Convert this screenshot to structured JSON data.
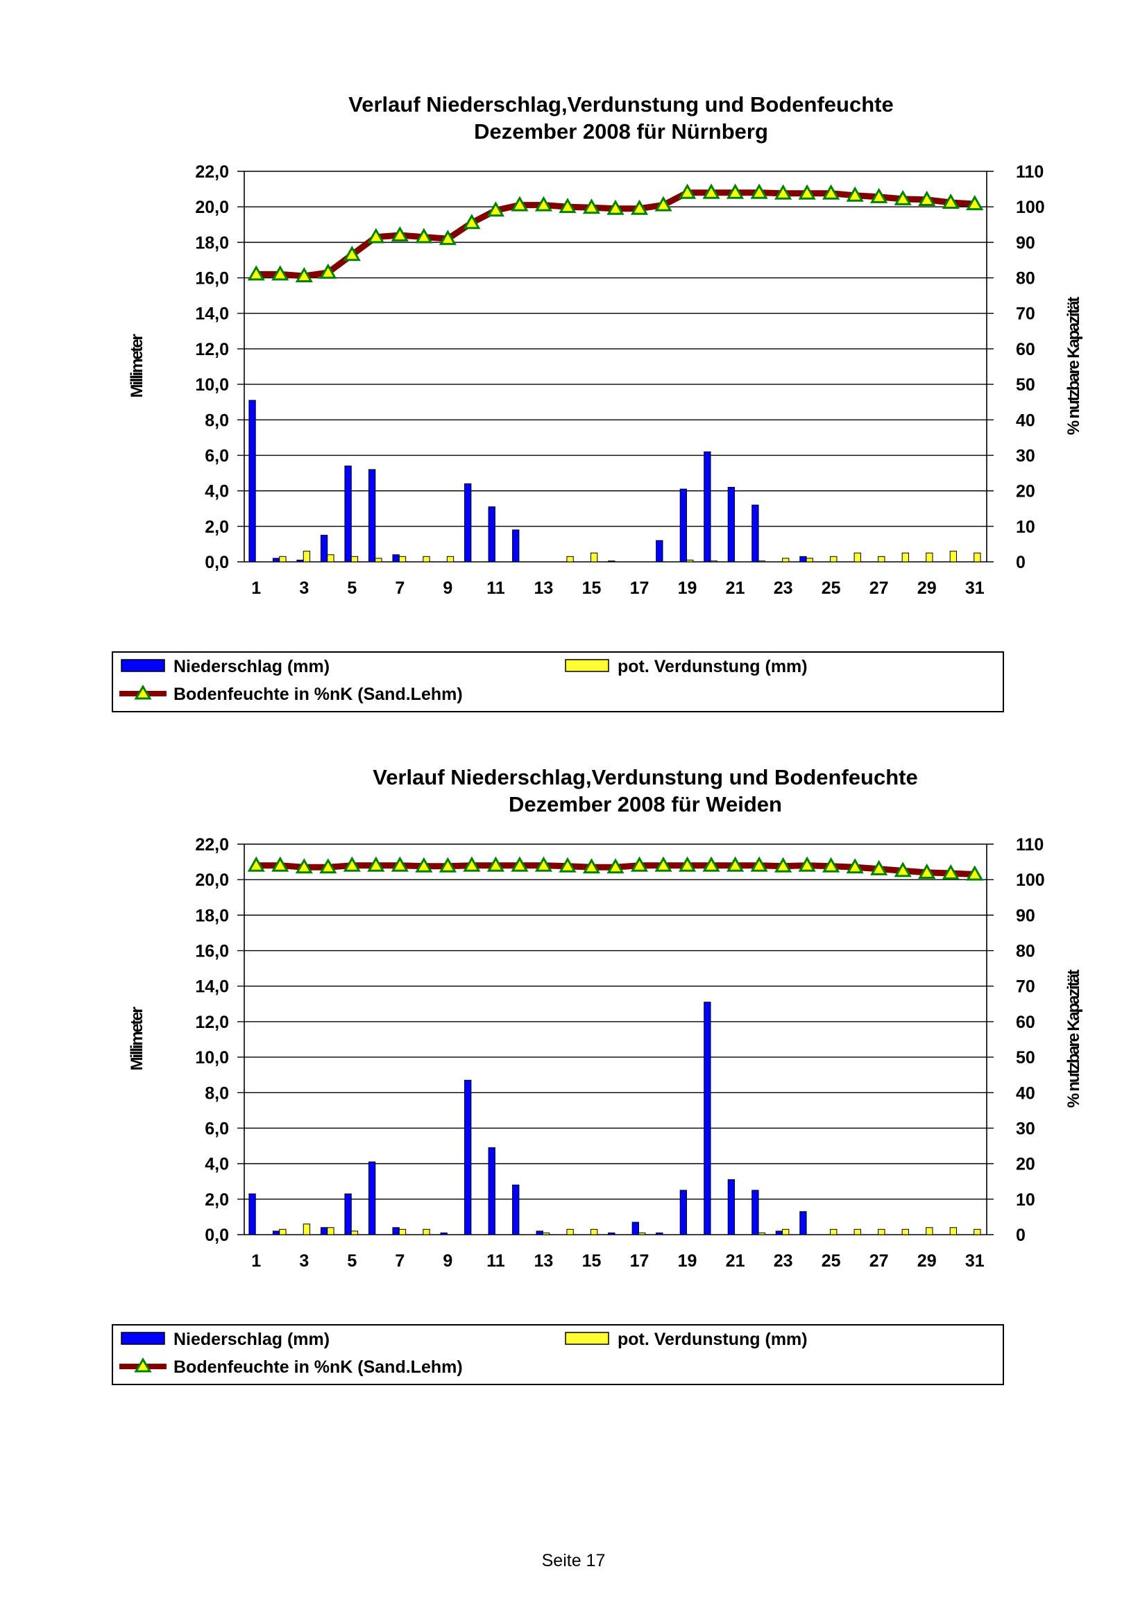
{
  "colors": {
    "precip": "#0000ff",
    "evap": "#ffff33",
    "soil_line": "#800000",
    "marker": "#ffff00",
    "marker_edge": "#008000"
  },
  "chart_data": [
    {
      "type": "bar",
      "title": "Verlauf Niederschlag,Verdunstung und Bodenfeuchte",
      "subtitle": "Dezember 2008 für Nürnberg",
      "ylabel": "Millimeter",
      "y2label": "% nutzbare Kapazität",
      "ylim": [
        0,
        22
      ],
      "y2lim": [
        0,
        110
      ],
      "yticks": [
        "0,0",
        "2,0",
        "4,0",
        "6,0",
        "8,0",
        "10,0",
        "12,0",
        "14,0",
        "16,0",
        "18,0",
        "20,0",
        "22,0"
      ],
      "y2ticks": [
        "0",
        "10",
        "20",
        "30",
        "40",
        "50",
        "60",
        "70",
        "80",
        "90",
        "100",
        "110"
      ],
      "xticks": [
        "1",
        "3",
        "5",
        "7",
        "9",
        "11",
        "13",
        "15",
        "17",
        "19",
        "21",
        "23",
        "25",
        "27",
        "29",
        "31"
      ],
      "categories": [
        1,
        2,
        3,
        4,
        5,
        6,
        7,
        8,
        9,
        10,
        11,
        12,
        13,
        14,
        15,
        16,
        17,
        18,
        19,
        20,
        21,
        22,
        23,
        24,
        25,
        26,
        27,
        28,
        29,
        30,
        31
      ],
      "series": [
        {
          "name": "Niederschlag (mm)",
          "kind": "bar",
          "values": [
            9.1,
            0.2,
            0.1,
            1.5,
            5.4,
            5.2,
            0.4,
            0,
            0,
            4.4,
            3.1,
            1.8,
            0,
            0,
            0,
            0.05,
            0,
            1.2,
            4.1,
            6.2,
            4.2,
            3.2,
            0,
            0.3,
            0,
            0,
            0,
            0,
            0,
            0,
            0
          ]
        },
        {
          "name": "pot. Verdunstung (mm)",
          "kind": "bar",
          "values": [
            0,
            0.3,
            0.6,
            0.4,
            0.3,
            0.2,
            0.3,
            0.3,
            0.3,
            0,
            0,
            0,
            0,
            0.3,
            0.5,
            0,
            0,
            0,
            0.1,
            0.05,
            0,
            0.05,
            0.2,
            0.2,
            0.3,
            0.5,
            0.3,
            0.5,
            0.5,
            0.6,
            0.5
          ]
        },
        {
          "name": "Bodenfeuchte in %nK (Sand.Lehm)",
          "kind": "line",
          "axis": "right",
          "values": [
            81,
            81,
            80.5,
            81.5,
            86.5,
            91.5,
            92,
            91.5,
            91,
            95.5,
            99,
            100.5,
            100.5,
            100,
            99.8,
            99.5,
            99.5,
            100.5,
            104,
            104,
            104,
            104,
            103.8,
            103.8,
            103.8,
            103.2,
            102.8,
            102.2,
            102,
            101.2,
            100.8
          ]
        }
      ],
      "legend": {
        "precip_label": "Niederschlag (mm)",
        "evap_label": "pot. Verdunstung (mm)",
        "soil_label": "Bodenfeuchte in %nK (Sand.Lehm)",
        "position": "bottom"
      }
    },
    {
      "type": "bar",
      "title": "Verlauf Niederschlag,Verdunstung und Bodenfeuchte",
      "subtitle": "Dezember 2008 für Weiden",
      "ylabel": "Millimeter",
      "y2label": "% nutzbare Kapazität",
      "ylim": [
        0,
        22
      ],
      "y2lim": [
        0,
        110
      ],
      "yticks": [
        "0,0",
        "2,0",
        "4,0",
        "6,0",
        "8,0",
        "10,0",
        "12,0",
        "14,0",
        "16,0",
        "18,0",
        "20,0",
        "22,0"
      ],
      "y2ticks": [
        "0",
        "10",
        "20",
        "30",
        "40",
        "50",
        "60",
        "70",
        "80",
        "90",
        "100",
        "110"
      ],
      "xticks": [
        "1",
        "3",
        "5",
        "7",
        "9",
        "11",
        "13",
        "15",
        "17",
        "19",
        "21",
        "23",
        "25",
        "27",
        "29",
        "31"
      ],
      "categories": [
        1,
        2,
        3,
        4,
        5,
        6,
        7,
        8,
        9,
        10,
        11,
        12,
        13,
        14,
        15,
        16,
        17,
        18,
        19,
        20,
        21,
        22,
        23,
        24,
        25,
        26,
        27,
        28,
        29,
        30,
        31
      ],
      "series": [
        {
          "name": "Niederschlag (mm)",
          "kind": "bar",
          "values": [
            2.3,
            0.2,
            0,
            0.4,
            2.3,
            4.1,
            0.4,
            0,
            0.1,
            8.7,
            4.9,
            2.8,
            0.2,
            0,
            0,
            0.1,
            0.7,
            0.1,
            2.5,
            13.1,
            3.1,
            2.5,
            0.2,
            1.3,
            0,
            0,
            0,
            0,
            0,
            0,
            0
          ]
        },
        {
          "name": "pot. Verdunstung (mm)",
          "kind": "bar",
          "values": [
            0,
            0.3,
            0.6,
            0.4,
            0.2,
            0,
            0.3,
            0.3,
            0,
            0,
            0,
            0,
            0.1,
            0.3,
            0.3,
            0,
            0.1,
            0,
            0,
            0,
            0,
            0.1,
            0.3,
            0,
            0.3,
            0.3,
            0.3,
            0.3,
            0.4,
            0.4,
            0.3
          ]
        },
        {
          "name": "Bodenfeuchte in %nK (Sand.Lehm)",
          "kind": "line",
          "axis": "right",
          "values": [
            104,
            104,
            103.5,
            103.5,
            104,
            104,
            104,
            103.8,
            103.8,
            104,
            104,
            104,
            104,
            103.8,
            103.5,
            103.5,
            104,
            104,
            104,
            104,
            104,
            104,
            103.8,
            104,
            103.8,
            103.5,
            103,
            102.5,
            102,
            101.8,
            101.5
          ]
        }
      ],
      "legend": {
        "precip_label": "Niederschlag (mm)",
        "evap_label": "pot. Verdunstung (mm)",
        "soil_label": "Bodenfeuchte in %nK (Sand.Lehm)",
        "position": "bottom"
      }
    }
  ],
  "footer": {
    "page_label": "Seite 17"
  }
}
